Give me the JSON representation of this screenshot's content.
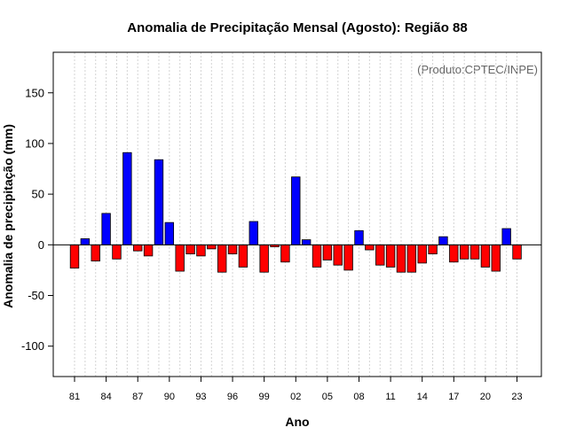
{
  "chart_data": {
    "type": "bar",
    "title": "Anomalia de Precipitação Mensal (Agosto): Região 88",
    "xlabel": "Ano",
    "ylabel": "Anomalia de precipitação (mm)",
    "credit": "(Produto:CPTEC/INPE)",
    "ylim": [
      -130,
      190
    ],
    "yticks": [
      -100,
      -50,
      0,
      50,
      100,
      150
    ],
    "ytick_labels": [
      "-100",
      "-50",
      "0",
      "50",
      "100",
      "150"
    ],
    "grid": true,
    "years": [
      1981,
      1982,
      1983,
      1984,
      1985,
      1986,
      1987,
      1988,
      1989,
      1990,
      1991,
      1992,
      1993,
      1994,
      1995,
      1996,
      1997,
      1998,
      1999,
      2000,
      2001,
      2002,
      2003,
      2004,
      2005,
      2006,
      2007,
      2008,
      2009,
      2010,
      2011,
      2012,
      2013,
      2014,
      2015,
      2016,
      2017,
      2018,
      2019,
      2020,
      2021,
      2022,
      2023
    ],
    "values": [
      -23,
      6,
      -16,
      31,
      -14,
      91,
      -6,
      -11,
      84,
      22,
      -26,
      -9,
      -11,
      -4,
      -27,
      -9,
      -22,
      23,
      -27,
      -2,
      -17,
      67,
      5,
      -22,
      -15,
      -20,
      -25,
      14,
      -5,
      -20,
      -22,
      -27,
      -27,
      -18,
      -9,
      8,
      -17,
      -14,
      -14,
      -22,
      -26,
      16,
      -14
    ],
    "xtick_labels": [
      "81",
      "84",
      "87",
      "90",
      "93",
      "96",
      "99",
      "02",
      "05",
      "08",
      "11",
      "14",
      "17",
      "20",
      "23"
    ],
    "colors": {
      "positive": "#0000ff",
      "negative": "#ff0000",
      "outline": "#000000",
      "grid": "#d3d3d3"
    }
  }
}
